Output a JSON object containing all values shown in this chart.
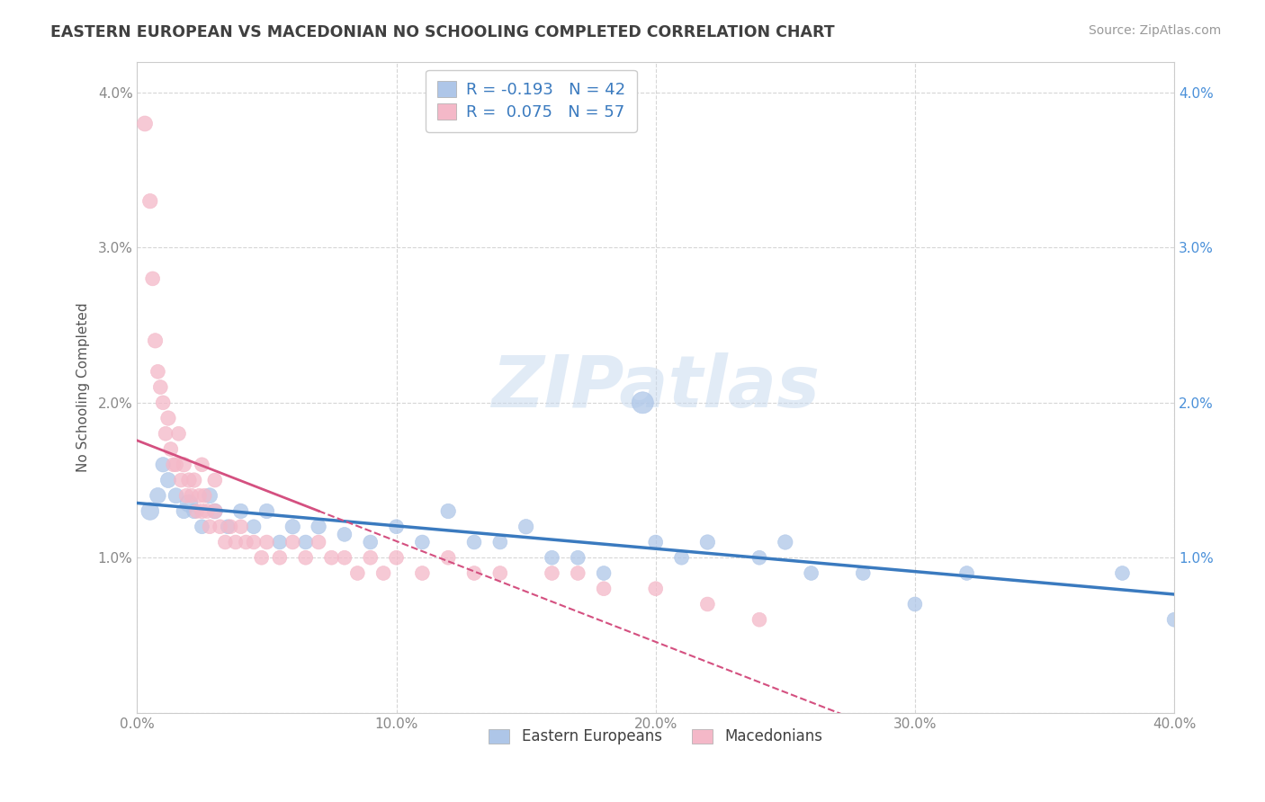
{
  "title": "EASTERN EUROPEAN VS MACEDONIAN NO SCHOOLING COMPLETED CORRELATION CHART",
  "source": "Source: ZipAtlas.com",
  "ylabel": "No Schooling Completed",
  "xlim": [
    0.0,
    0.4
  ],
  "ylim": [
    0.0,
    0.042
  ],
  "xticks": [
    0.0,
    0.1,
    0.2,
    0.3,
    0.4
  ],
  "xticklabels": [
    "0.0%",
    "10.0%",
    "20.0%",
    "30.0%",
    "40.0%"
  ],
  "yticks": [
    0.0,
    0.01,
    0.02,
    0.03,
    0.04
  ],
  "yticklabels_left": [
    "",
    "1.0%",
    "2.0%",
    "3.0%",
    "4.0%"
  ],
  "yticklabels_right": [
    "",
    "1.0%",
    "2.0%",
    "3.0%",
    "4.0%"
  ],
  "legend_top": [
    {
      "label": "R = -0.193   N = 42",
      "color": "#aec6e8"
    },
    {
      "label": "R =  0.075   N = 57",
      "color": "#f4b8c8"
    }
  ],
  "legend_bottom": [
    {
      "label": "Eastern Europeans",
      "color": "#aec6e8"
    },
    {
      "label": "Macedonians",
      "color": "#f4b8c8"
    }
  ],
  "eastern_color": "#aec6e8",
  "eastern_line_color": "#3a7abf",
  "macedonian_color": "#f4b8c8",
  "macedonian_line_color": "#d45080",
  "eastern_x": [
    0.005,
    0.008,
    0.01,
    0.012,
    0.015,
    0.018,
    0.02,
    0.022,
    0.025,
    0.028,
    0.03,
    0.035,
    0.04,
    0.045,
    0.05,
    0.055,
    0.06,
    0.065,
    0.07,
    0.08,
    0.09,
    0.1,
    0.11,
    0.12,
    0.13,
    0.14,
    0.15,
    0.16,
    0.17,
    0.18,
    0.195,
    0.2,
    0.21,
    0.22,
    0.24,
    0.25,
    0.26,
    0.28,
    0.3,
    0.32,
    0.38,
    0.4
  ],
  "eastern_y": [
    0.013,
    0.014,
    0.016,
    0.015,
    0.014,
    0.013,
    0.0135,
    0.013,
    0.012,
    0.014,
    0.013,
    0.012,
    0.013,
    0.012,
    0.013,
    0.011,
    0.012,
    0.011,
    0.012,
    0.0115,
    0.011,
    0.012,
    0.011,
    0.013,
    0.011,
    0.011,
    0.012,
    0.01,
    0.01,
    0.009,
    0.02,
    0.011,
    0.01,
    0.011,
    0.01,
    0.011,
    0.009,
    0.009,
    0.007,
    0.009,
    0.009,
    0.006
  ],
  "eastern_sizes": [
    200,
    160,
    140,
    150,
    150,
    140,
    200,
    140,
    130,
    150,
    150,
    130,
    140,
    130,
    140,
    130,
    140,
    130,
    140,
    130,
    130,
    130,
    130,
    140,
    130,
    130,
    140,
    130,
    130,
    130,
    300,
    130,
    130,
    140,
    130,
    140,
    130,
    130,
    130,
    130,
    130,
    130
  ],
  "macedonian_x": [
    0.003,
    0.005,
    0.006,
    0.007,
    0.008,
    0.009,
    0.01,
    0.011,
    0.012,
    0.013,
    0.014,
    0.015,
    0.016,
    0.017,
    0.018,
    0.019,
    0.02,
    0.021,
    0.022,
    0.023,
    0.024,
    0.025,
    0.026,
    0.027,
    0.028,
    0.03,
    0.032,
    0.034,
    0.036,
    0.038,
    0.04,
    0.042,
    0.045,
    0.048,
    0.05,
    0.055,
    0.06,
    0.065,
    0.07,
    0.075,
    0.08,
    0.085,
    0.09,
    0.095,
    0.1,
    0.11,
    0.12,
    0.13,
    0.14,
    0.16,
    0.17,
    0.18,
    0.2,
    0.22,
    0.24,
    0.025,
    0.03
  ],
  "macedonian_y": [
    0.038,
    0.033,
    0.028,
    0.024,
    0.022,
    0.021,
    0.02,
    0.018,
    0.019,
    0.017,
    0.016,
    0.016,
    0.018,
    0.015,
    0.016,
    0.014,
    0.015,
    0.014,
    0.015,
    0.013,
    0.014,
    0.013,
    0.014,
    0.013,
    0.012,
    0.013,
    0.012,
    0.011,
    0.012,
    0.011,
    0.012,
    0.011,
    0.011,
    0.01,
    0.011,
    0.01,
    0.011,
    0.01,
    0.011,
    0.01,
    0.01,
    0.009,
    0.01,
    0.009,
    0.01,
    0.009,
    0.01,
    0.009,
    0.009,
    0.009,
    0.009,
    0.008,
    0.008,
    0.007,
    0.006,
    0.016,
    0.015
  ],
  "macedonian_sizes": [
    150,
    140,
    130,
    140,
    130,
    130,
    130,
    130,
    140,
    130,
    130,
    130,
    130,
    130,
    140,
    130,
    140,
    130,
    140,
    130,
    130,
    140,
    130,
    130,
    130,
    140,
    130,
    130,
    130,
    130,
    130,
    130,
    130,
    130,
    130,
    130,
    130,
    130,
    130,
    130,
    130,
    130,
    130,
    130,
    130,
    130,
    130,
    130,
    130,
    130,
    130,
    130,
    130,
    130,
    130,
    130,
    130
  ],
  "watermark_text": "ZIPatlas",
  "watermark_color": "#c5d8ee",
  "watermark_alpha": 0.5,
  "background_color": "#ffffff",
  "grid_color": "#cccccc",
  "title_color": "#404040"
}
